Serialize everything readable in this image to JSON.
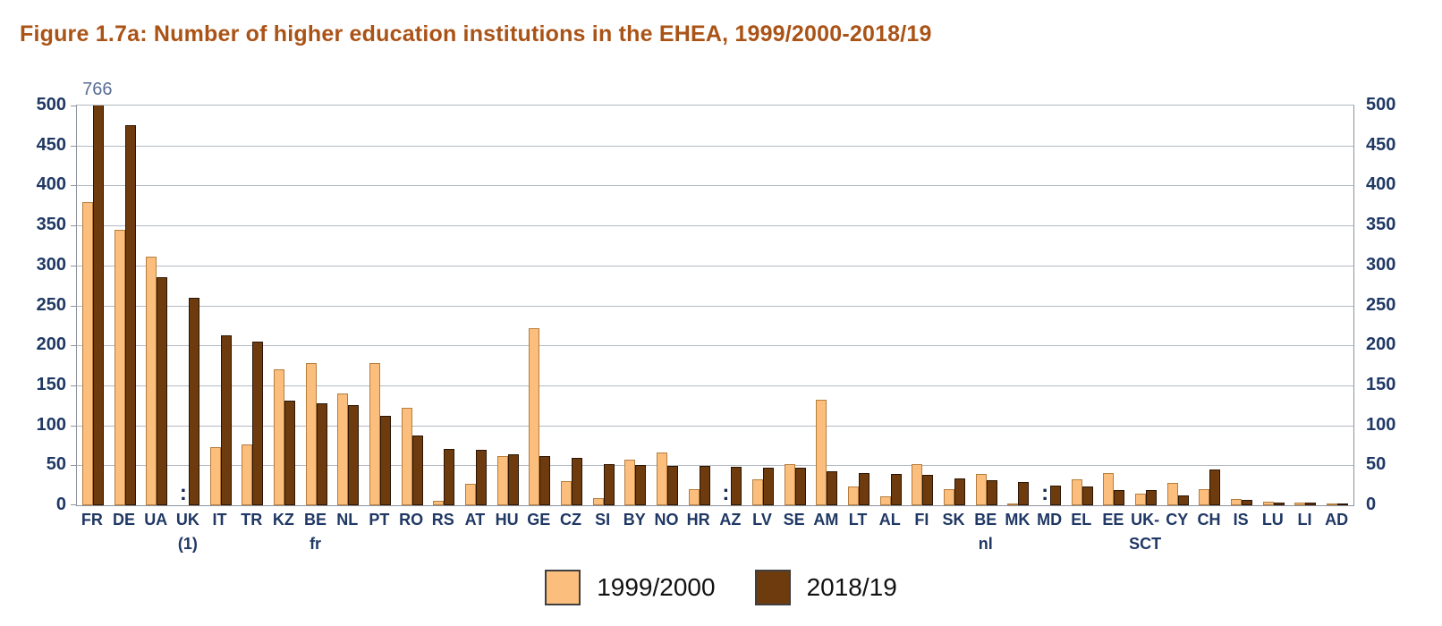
{
  "title": "Figure 1.7a: Number of higher education institutions in the EHEA, 1999/2000-2018/19",
  "colors": {
    "title": "#aa5317",
    "axis_label": "#1f3864",
    "grid": "#b3bac4",
    "plot_border": "#8d949c",
    "series_1999": "#fbbe7d",
    "series_1999_border": "#b57d3c",
    "series_2018": "#6e3b0e",
    "series_2018_border": "#2a1504",
    "annotation": "#5a6d96",
    "missing_marker": "#16294d",
    "legend_text": "#111111"
  },
  "chart_data": {
    "type": "bar",
    "title": "Figure 1.7a: Number of higher education institutions in the EHEA, 1999/2000-2018/19",
    "xlabel": "",
    "ylabel": "",
    "ylim": [
      0,
      500
    ],
    "yticks": [
      0,
      50,
      100,
      150,
      200,
      250,
      300,
      350,
      400,
      450,
      500
    ],
    "grid": "horizontal",
    "dual_y_axis": true,
    "legend_position": "bottom-center",
    "missing_symbol": ":",
    "categories": [
      {
        "label": "FR",
        "sub": ""
      },
      {
        "label": "DE",
        "sub": ""
      },
      {
        "label": "UA",
        "sub": ""
      },
      {
        "label": "UK",
        "sub": "(1)"
      },
      {
        "label": "IT",
        "sub": ""
      },
      {
        "label": "TR",
        "sub": ""
      },
      {
        "label": "KZ",
        "sub": ""
      },
      {
        "label": "BE",
        "sub": "fr"
      },
      {
        "label": "NL",
        "sub": ""
      },
      {
        "label": "PT",
        "sub": ""
      },
      {
        "label": "RO",
        "sub": ""
      },
      {
        "label": "RS",
        "sub": ""
      },
      {
        "label": "AT",
        "sub": ""
      },
      {
        "label": "HU",
        "sub": ""
      },
      {
        "label": "GE",
        "sub": ""
      },
      {
        "label": "CZ",
        "sub": ""
      },
      {
        "label": "SI",
        "sub": ""
      },
      {
        "label": "BY",
        "sub": ""
      },
      {
        "label": "NO",
        "sub": ""
      },
      {
        "label": "HR",
        "sub": ""
      },
      {
        "label": "AZ",
        "sub": ""
      },
      {
        "label": "LV",
        "sub": ""
      },
      {
        "label": "SE",
        "sub": ""
      },
      {
        "label": "AM",
        "sub": ""
      },
      {
        "label": "LT",
        "sub": ""
      },
      {
        "label": "AL",
        "sub": ""
      },
      {
        "label": "FI",
        "sub": ""
      },
      {
        "label": "SK",
        "sub": ""
      },
      {
        "label": "BE",
        "sub": "nl"
      },
      {
        "label": "MK",
        "sub": ""
      },
      {
        "label": "MD",
        "sub": ""
      },
      {
        "label": "EL",
        "sub": ""
      },
      {
        "label": "EE",
        "sub": ""
      },
      {
        "label": "UK-",
        "sub": "SCT"
      },
      {
        "label": "CY",
        "sub": ""
      },
      {
        "label": "CH",
        "sub": ""
      },
      {
        "label": "IS",
        "sub": ""
      },
      {
        "label": "LU",
        "sub": ""
      },
      {
        "label": "LI",
        "sub": ""
      },
      {
        "label": "AD",
        "sub": ""
      }
    ],
    "series": [
      {
        "name": "1999/2000",
        "values": [
          379,
          345,
          311,
          null,
          73,
          76,
          170,
          178,
          140,
          178,
          122,
          6,
          27,
          61,
          222,
          30,
          9,
          57,
          66,
          20,
          null,
          32,
          51,
          132,
          24,
          11,
          51,
          20,
          39,
          2,
          null,
          33,
          40,
          14,
          28,
          20,
          8,
          4,
          3,
          2
        ]
      },
      {
        "name": "2018/19",
        "values": [
          766,
          475,
          285,
          260,
          212,
          205,
          131,
          128,
          125,
          112,
          87,
          70,
          69,
          64,
          62,
          59,
          51,
          50,
          49,
          49,
          48,
          47,
          47,
          43,
          40,
          39,
          38,
          34,
          31,
          29,
          25,
          24,
          19,
          19,
          12,
          45,
          7,
          3,
          3,
          2
        ]
      }
    ],
    "annotations": [
      {
        "category_index": 0,
        "series_index": 1,
        "text": "766"
      }
    ]
  },
  "legend": {
    "items": [
      {
        "label": "1999/2000"
      },
      {
        "label": "2018/19"
      }
    ]
  }
}
